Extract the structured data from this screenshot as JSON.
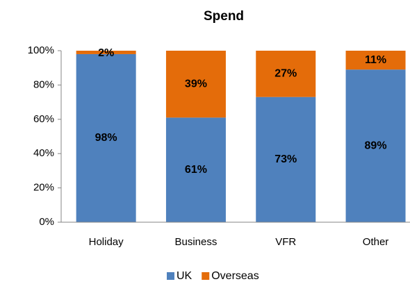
{
  "chart_data": {
    "type": "bar",
    "stacked": true,
    "title": "Spend",
    "categories": [
      "Holiday",
      "Business",
      "VFR",
      "Other"
    ],
    "series": [
      {
        "name": "UK",
        "color": "#4f81bd",
        "values": [
          98,
          61,
          73,
          89
        ],
        "value_labels": [
          "98%",
          "61%",
          "73%",
          "89%"
        ]
      },
      {
        "name": "Overseas",
        "color": "#e46c0a",
        "values": [
          2,
          39,
          27,
          11
        ],
        "value_labels": [
          "2%",
          "39%",
          "27%",
          "11%"
        ]
      }
    ],
    "ylim": [
      0,
      100
    ],
    "yticks": [
      {
        "value": 0,
        "label": "0%"
      },
      {
        "value": 20,
        "label": "20%"
      },
      {
        "value": 40,
        "label": "40%"
      },
      {
        "value": 60,
        "label": "60%"
      },
      {
        "value": 80,
        "label": "80%"
      },
      {
        "value": 100,
        "label": "100%"
      }
    ],
    "legend": "bottom"
  }
}
